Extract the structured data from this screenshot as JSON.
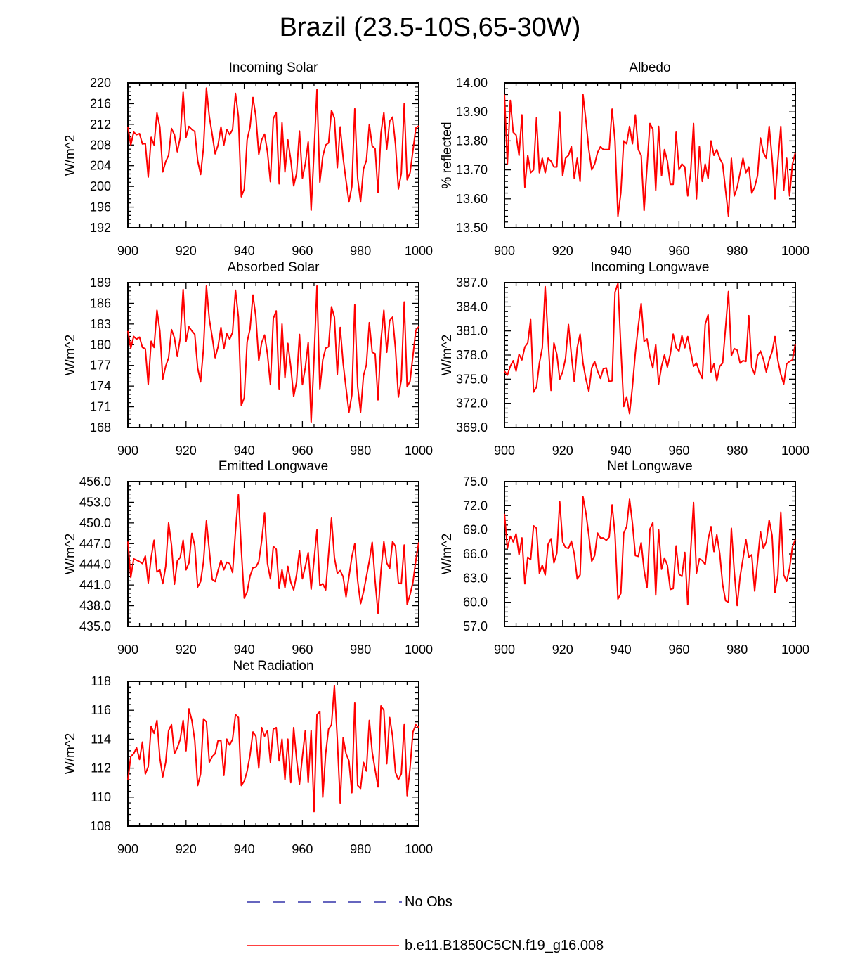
{
  "figure": {
    "title": "Brazil (23.5-10S,65-30W)"
  },
  "legend": [
    {
      "label": "No Obs",
      "color": "#3333aa",
      "style": "dashed"
    },
    {
      "label": "b.e11.B1850C5CN.f19_g16.008",
      "color": "#ff0000",
      "style": "solid"
    }
  ],
  "chart_data": [
    {
      "type": "line",
      "title": "Incoming Solar",
      "ylabel": "W/m^2",
      "xlabel": "",
      "xlim": [
        900,
        1000
      ],
      "ylim": [
        192,
        220
      ],
      "xticks": [
        "900",
        "920",
        "940",
        "960",
        "980",
        "1000"
      ],
      "yticks": [
        "192",
        "196",
        "200",
        "204",
        "208",
        "212",
        "216",
        "220"
      ],
      "series": [
        {
          "color": "#ff0000",
          "x_start": 900,
          "x_step": 1,
          "values": [
            211.5,
            208.0,
            210.5,
            210.0,
            210.2,
            208.2,
            208.3,
            201.8,
            209.5,
            208.0,
            214.2,
            211.5,
            202.8,
            204.8,
            206.0,
            211.2,
            210.0,
            206.7,
            209.5,
            218.2,
            209.5,
            211.6,
            211.0,
            210.6,
            205.0,
            202.3,
            207.5,
            219.0,
            213.5,
            210.0,
            206.3,
            208.0,
            211.5,
            208.0,
            211.0,
            210.0,
            211.0,
            218.0,
            213.5,
            198.0,
            199.5,
            209.0,
            211.5,
            217.2,
            213.5,
            206.2,
            209.0,
            210.1,
            206.6,
            200.9,
            213.1,
            214.3,
            200.5,
            212.3,
            202.8,
            209.0,
            205.1,
            200.1,
            202.5,
            210.7,
            201.6,
            204.4,
            208.6,
            195.4,
            206.7,
            218.7,
            200.8,
            205.8,
            208.0,
            208.4,
            214.7,
            213.2,
            203.6,
            211.5,
            205.5,
            201.1,
            197.0,
            200.0,
            215.0,
            201.5,
            197.0,
            203.4,
            205.0,
            212.0,
            207.8,
            207.3,
            198.8,
            210.3,
            214.3,
            207.2,
            212.6,
            213.4,
            208.1,
            199.5,
            202.5,
            216.0,
            201.3,
            202.6,
            206.9,
            211.3,
            211.7
          ]
        }
      ]
    },
    {
      "type": "line",
      "title": "Albedo",
      "ylabel": "% reflected",
      "xlabel": "",
      "xlim": [
        900,
        1000
      ],
      "ylim": [
        13.5,
        14.0
      ],
      "xticks": [
        "900",
        "920",
        "940",
        "960",
        "980",
        "1000"
      ],
      "yticks": [
        "13.50",
        "13.60",
        "13.70",
        "13.80",
        "13.90",
        "14.00"
      ],
      "series": [
        {
          "color": "#ff0000",
          "x_start": 900,
          "x_step": 1,
          "values": [
            13.96,
            13.72,
            13.94,
            13.83,
            13.82,
            13.75,
            13.89,
            13.64,
            13.75,
            13.69,
            13.7,
            13.88,
            13.69,
            13.74,
            13.69,
            13.74,
            13.73,
            13.71,
            13.71,
            13.9,
            13.68,
            13.74,
            13.75,
            13.78,
            13.67,
            13.74,
            13.66,
            13.96,
            13.87,
            13.77,
            13.7,
            13.72,
            13.76,
            13.78,
            13.77,
            13.77,
            13.77,
            13.91,
            13.8,
            13.54,
            13.62,
            13.8,
            13.79,
            13.85,
            13.79,
            13.89,
            13.77,
            13.75,
            13.56,
            13.71,
            13.86,
            13.84,
            13.63,
            13.85,
            13.68,
            13.77,
            13.73,
            13.65,
            13.65,
            13.83,
            13.7,
            13.72,
            13.71,
            13.61,
            13.69,
            13.86,
            13.6,
            13.78,
            13.66,
            13.72,
            13.67,
            13.8,
            13.75,
            13.77,
            13.74,
            13.72,
            13.63,
            13.54,
            13.74,
            13.61,
            13.64,
            13.69,
            13.74,
            13.69,
            13.71,
            13.62,
            13.64,
            13.68,
            13.81,
            13.76,
            13.74,
            13.85,
            13.74,
            13.6,
            13.73,
            13.85,
            13.63,
            13.74,
            13.61,
            13.72,
            13.76
          ]
        }
      ]
    },
    {
      "type": "line",
      "title": "Absorbed Solar",
      "ylabel": "W/m^2",
      "xlabel": "",
      "xlim": [
        900,
        1000
      ],
      "ylim": [
        168,
        189
      ],
      "xticks": [
        "900",
        "920",
        "940",
        "960",
        "980",
        "1000"
      ],
      "yticks": [
        "168",
        "171",
        "174",
        "177",
        "180",
        "183",
        "186",
        "189"
      ],
      "series": [
        {
          "color": "#ff0000",
          "x_start": 900,
          "x_step": 1,
          "values": [
            182.0,
            179.5,
            181.2,
            180.8,
            181.1,
            179.6,
            179.4,
            174.2,
            180.5,
            179.6,
            185.0,
            182.0,
            175.0,
            176.9,
            178.1,
            182.2,
            181.0,
            178.3,
            181.0,
            188.0,
            180.5,
            182.6,
            182.0,
            181.5,
            176.6,
            174.6,
            179.5,
            188.5,
            183.7,
            181.1,
            178.1,
            179.7,
            182.5,
            179.4,
            181.6,
            180.8,
            181.8,
            187.9,
            184.0,
            171.2,
            172.3,
            180.4,
            182.3,
            187.2,
            184.0,
            177.7,
            180.3,
            181.4,
            178.6,
            174.2,
            183.8,
            184.9,
            173.5,
            183.0,
            175.2,
            180.2,
            176.8,
            172.5,
            174.6,
            181.5,
            174.2,
            176.7,
            180.3,
            168.8,
            178.0,
            188.5,
            173.5,
            177.8,
            179.5,
            179.7,
            185.5,
            184.0,
            175.7,
            182.5,
            177.3,
            173.7,
            170.2,
            172.7,
            185.8,
            173.9,
            170.2,
            175.5,
            177.1,
            183.2,
            178.9,
            178.7,
            172.0,
            180.6,
            185.0,
            178.9,
            183.5,
            184.0,
            179.4,
            172.4,
            174.9,
            186.2,
            173.9,
            174.7,
            178.4,
            182.1,
            182.6
          ]
        }
      ]
    },
    {
      "type": "line",
      "title": "Incoming Longwave",
      "ylabel": "W/m^2",
      "xlabel": "",
      "xlim": [
        900,
        1000
      ],
      "ylim": [
        369.0,
        387.0
      ],
      "xticks": [
        "900",
        "920",
        "940",
        "960",
        "980",
        "1000"
      ],
      "yticks": [
        "369.0",
        "372.0",
        "375.0",
        "378.0",
        "381.0",
        "384.0",
        "387.0"
      ],
      "series": [
        {
          "color": "#ff0000",
          "x_start": 900,
          "x_step": 1,
          "values": [
            376.0,
            375.5,
            376.6,
            377.3,
            376.0,
            378.1,
            377.4,
            379.0,
            379.5,
            382.4,
            373.4,
            374.0,
            377.0,
            378.9,
            386.5,
            380.0,
            373.6,
            379.5,
            378.1,
            375.0,
            375.9,
            377.6,
            381.8,
            378.0,
            374.7,
            378.9,
            380.6,
            377.0,
            375.0,
            373.5,
            376.4,
            377.2,
            376.0,
            375.1,
            376.3,
            376.4,
            374.7,
            374.8,
            385.8,
            386.9,
            379.0,
            371.6,
            372.8,
            370.7,
            374.1,
            378.3,
            381.6,
            384.4,
            379.7,
            380.0,
            377.8,
            376.4,
            379.3,
            374.4,
            376.6,
            378.0,
            376.5,
            378.1,
            380.6,
            378.9,
            378.5,
            380.4,
            378.9,
            380.3,
            378.4,
            376.6,
            377.0,
            375.9,
            375.1,
            381.8,
            383.0,
            375.9,
            376.9,
            374.8,
            376.6,
            377.0,
            381.4,
            385.9,
            377.9,
            378.8,
            378.6,
            377.0,
            377.3,
            377.2,
            382.9,
            376.5,
            375.6,
            377.9,
            378.5,
            377.5,
            375.9,
            377.4,
            378.4,
            380.3,
            377.3,
            375.6,
            374.4,
            376.9,
            377.2,
            377.4,
            379.4
          ]
        }
      ]
    },
    {
      "type": "line",
      "title": "Emitted Longwave",
      "ylabel": "W/m^2",
      "xlabel": "",
      "xlim": [
        900,
        1000
      ],
      "ylim": [
        435.0,
        456.0
      ],
      "xticks": [
        "900",
        "920",
        "940",
        "960",
        "980",
        "1000"
      ],
      "yticks": [
        "435.0",
        "438.0",
        "441.0",
        "444.0",
        "447.0",
        "450.0",
        "453.0",
        "456.0"
      ],
      "series": [
        {
          "color": "#ff0000",
          "x_start": 900,
          "x_step": 1,
          "values": [
            447.3,
            442.1,
            444.8,
            444.6,
            444.4,
            444.1,
            445.2,
            441.3,
            445.0,
            447.5,
            442.9,
            443.2,
            441.2,
            443.7,
            450.0,
            446.8,
            441.1,
            444.5,
            445.0,
            447.5,
            443.2,
            444.2,
            448.5,
            446.7,
            440.7,
            441.5,
            444.4,
            450.3,
            446.0,
            441.8,
            441.5,
            443.1,
            444.6,
            443.2,
            444.3,
            444.1,
            442.8,
            448.8,
            454.1,
            446.1,
            439.1,
            440.0,
            442.3,
            443.5,
            443.6,
            444.4,
            447.4,
            451.5,
            444.1,
            441.9,
            446.6,
            446.2,
            440.5,
            443.2,
            440.6,
            443.7,
            441.4,
            440.3,
            442.5,
            446.0,
            441.9,
            443.7,
            445.7,
            440.4,
            444.6,
            449.0,
            440.9,
            441.2,
            440.3,
            445.5,
            450.7,
            445.0,
            442.7,
            443.1,
            442.2,
            439.3,
            442.2,
            445.1,
            447.0,
            441.6,
            438.3,
            440.0,
            442.2,
            444.5,
            447.2,
            441.6,
            436.9,
            443.0,
            447.3,
            444.2,
            443.4,
            447.3,
            446.6,
            441.3,
            441.2,
            446.8,
            438.2,
            439.6,
            441.4,
            444.6,
            447.2
          ]
        }
      ]
    },
    {
      "type": "line",
      "title": "Net Longwave",
      "ylabel": "W/m^2",
      "xlabel": "",
      "xlim": [
        900,
        1000
      ],
      "ylim": [
        57.0,
        75.0
      ],
      "xticks": [
        "900",
        "920",
        "940",
        "960",
        "980",
        "1000"
      ],
      "yticks": [
        "57.0",
        "60.0",
        "63.0",
        "66.0",
        "69.0",
        "72.0",
        "75.0"
      ],
      "series": [
        {
          "color": "#ff0000",
          "x_start": 900,
          "x_step": 1,
          "values": [
            71.0,
            66.7,
            68.2,
            67.5,
            68.5,
            65.9,
            68.0,
            62.3,
            65.6,
            65.3,
            69.5,
            69.2,
            63.6,
            64.6,
            63.4,
            67.2,
            67.9,
            64.9,
            66.1,
            72.5,
            67.5,
            66.8,
            66.7,
            67.6,
            66.0,
            62.9,
            63.4,
            73.1,
            71.1,
            68.3,
            65.1,
            65.8,
            68.6,
            68.0,
            68.0,
            67.7,
            68.1,
            72.1,
            68.4,
            60.4,
            61.1,
            68.6,
            69.4,
            72.8,
            69.8,
            65.8,
            65.7,
            67.4,
            64.0,
            61.8,
            69.1,
            69.9,
            60.9,
            69.0,
            64.1,
            65.5,
            64.6,
            61.6,
            61.7,
            67.0,
            63.5,
            63.2,
            66.2,
            59.7,
            66.3,
            72.4,
            63.6,
            65.4,
            65.2,
            64.7,
            67.8,
            69.4,
            66.3,
            68.4,
            66.1,
            62.2,
            60.2,
            60.0,
            69.2,
            63.8,
            59.6,
            63.2,
            65.4,
            67.8,
            65.6,
            65.9,
            61.4,
            65.1,
            68.8,
            66.7,
            67.5,
            70.2,
            68.3,
            61.2,
            63.4,
            71.2,
            63.4,
            62.6,
            64.2,
            66.9,
            67.8
          ]
        }
      ]
    },
    {
      "type": "line",
      "title": "Net Radiation",
      "ylabel": "W/m^2",
      "xlabel": "",
      "xlim": [
        900,
        1000
      ],
      "ylim": [
        108,
        118
      ],
      "xticks": [
        "900",
        "920",
        "940",
        "960",
        "980",
        "1000"
      ],
      "yticks": [
        "108",
        "110",
        "112",
        "114",
        "116",
        "118"
      ],
      "series": [
        {
          "color": "#ff0000",
          "x_start": 900,
          "x_step": 1,
          "values": [
            111.2,
            112.8,
            113.0,
            113.4,
            112.6,
            113.8,
            111.6,
            112.1,
            114.9,
            114.4,
            115.3,
            112.7,
            111.4,
            112.4,
            114.6,
            115.0,
            113.0,
            113.4,
            114.0,
            115.3,
            113.2,
            116.1,
            115.3,
            113.9,
            110.8,
            111.6,
            115.4,
            115.2,
            112.4,
            112.8,
            113.0,
            113.9,
            113.9,
            111.5,
            114.0,
            113.6,
            114.0,
            115.7,
            115.5,
            110.8,
            111.1,
            111.8,
            112.9,
            114.5,
            114.2,
            112.0,
            114.8,
            114.2,
            114.6,
            112.4,
            114.7,
            114.8,
            112.5,
            114.0,
            111.2,
            114.0,
            111.0,
            114.8,
            112.6,
            110.9,
            112.8,
            114.6,
            111.0,
            114.6,
            109.0,
            115.7,
            115.9,
            110.0,
            113.0,
            114.7,
            115.0,
            117.7,
            114.0,
            109.6,
            114.1,
            113.0,
            112.5,
            110.3,
            116.5,
            110.8,
            110.6,
            112.4,
            111.8,
            115.3,
            113.1,
            111.9,
            110.7,
            116.3,
            116.0,
            112.3,
            115.5,
            114.2,
            111.7,
            111.2,
            111.6,
            115.0,
            110.1,
            112.0,
            114.5,
            115.0,
            114.8
          ]
        }
      ]
    }
  ]
}
